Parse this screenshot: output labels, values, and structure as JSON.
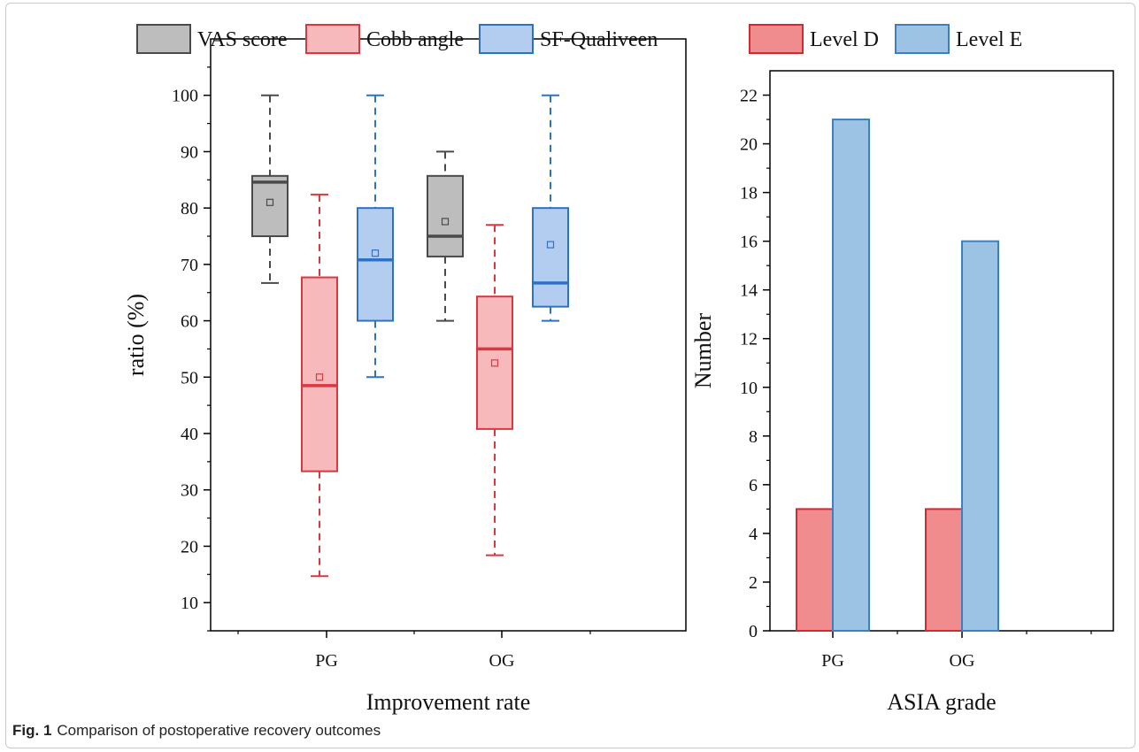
{
  "caption": {
    "label": "Fig. 1",
    "text": "Comparison of postoperative recovery outcomes"
  },
  "colors": {
    "vas_fill": "#bdbdbd",
    "vas_stroke": "#4a4a4a",
    "cobb_fill": "#f7b9bb",
    "cobb_stroke": "#d9393e",
    "sf_fill": "#b3cdf1",
    "sf_stroke": "#2f72c5",
    "level_d_fill": "#f08c8e",
    "level_d_stroke": "#d12a30",
    "level_e_fill": "#9dc3e4",
    "level_e_stroke": "#3f7fbe"
  },
  "chart_data": [
    {
      "type": "box",
      "title": "",
      "xlabel": "Improvement rate",
      "ylabel": "ratio (%)",
      "ylim": [
        5,
        110
      ],
      "yticks": [
        10,
        20,
        30,
        40,
        50,
        60,
        70,
        80,
        90,
        100
      ],
      "categories": [
        "PG",
        "OG"
      ],
      "legend": {
        "position": "top",
        "entries": [
          "VAS score",
          "Cobb angle",
          "SF-Qualiveen"
        ]
      },
      "grid": false,
      "series": [
        {
          "name": "VAS score",
          "color_key": "vas",
          "boxes": [
            {
              "min": 66.7,
              "q1": 75,
              "median": 84.6,
              "q3": 85.7,
              "max": 100,
              "mean": 81
            },
            {
              "min": 60,
              "q1": 71.4,
              "median": 75,
              "q3": 85.7,
              "max": 90,
              "mean": 77.6
            }
          ]
        },
        {
          "name": "Cobb angle",
          "color_key": "cobb",
          "boxes": [
            {
              "min": 14.7,
              "q1": 33.3,
              "median": 48.5,
              "q3": 67.7,
              "max": 82.4,
              "mean": 50
            },
            {
              "min": 18.4,
              "q1": 40.8,
              "median": 55,
              "q3": 64.3,
              "max": 77,
              "mean": 52.5
            }
          ]
        },
        {
          "name": "SF-Qualiveen",
          "color_key": "sf",
          "boxes": [
            {
              "min": 50,
              "q1": 60,
              "median": 70.8,
              "q3": 80,
              "max": 100,
              "mean": 72
            },
            {
              "min": 60,
              "q1": 62.5,
              "median": 66.7,
              "q3": 80,
              "max": 100,
              "mean": 73.5
            }
          ]
        }
      ]
    },
    {
      "type": "bar",
      "title": "",
      "xlabel": "ASIA grade",
      "ylabel": "Number",
      "ylim": [
        0,
        23
      ],
      "yticks": [
        0,
        2,
        4,
        6,
        8,
        10,
        12,
        14,
        16,
        18,
        20,
        22
      ],
      "categories": [
        "PG",
        "OG"
      ],
      "legend": {
        "position": "top",
        "entries": [
          "Level D",
          "Level E"
        ]
      },
      "grid": false,
      "series": [
        {
          "name": "Level D",
          "color_key": "level_d",
          "values": [
            5,
            5
          ]
        },
        {
          "name": "Level E",
          "color_key": "level_e",
          "values": [
            21,
            16
          ]
        }
      ]
    }
  ]
}
